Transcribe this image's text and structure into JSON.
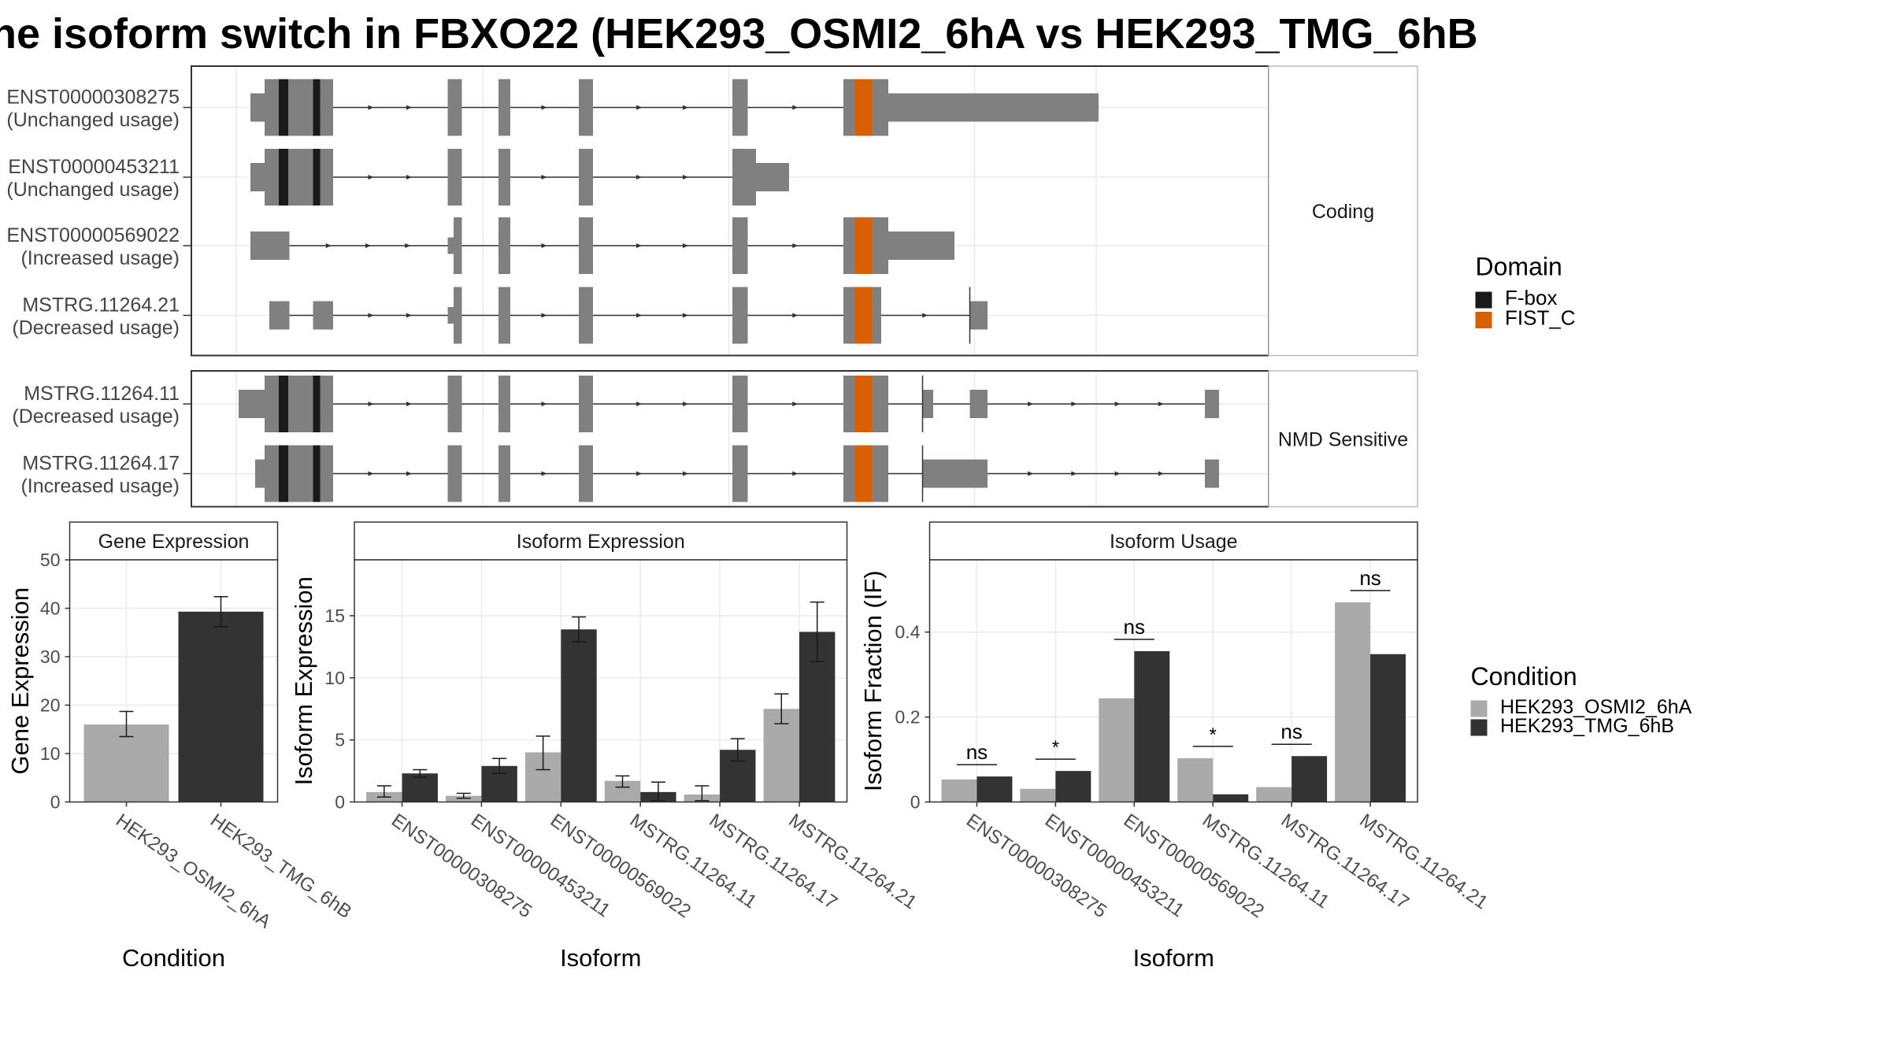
{
  "title": "he isoform switch in FBXO22 (HEK293_OSMI2_6hA vs HEK293_TMG_6hB",
  "structure": {
    "facets": [
      "Coding",
      "NMD Sensitive"
    ],
    "transcripts": [
      {
        "id": "ENST00000308275",
        "usage": "(Unchanged usage)",
        "facet": "Coding"
      },
      {
        "id": "ENST00000453211",
        "usage": "(Unchanged usage)",
        "facet": "Coding"
      },
      {
        "id": "ENST00000569022",
        "usage": "(Increased usage)",
        "facet": "Coding"
      },
      {
        "id": "MSTRG.11264.21",
        "usage": "(Decreased usage)",
        "facet": "Coding"
      },
      {
        "id": "MSTRG.11264.11",
        "usage": "(Decreased usage)",
        "facet": "NMD Sensitive"
      },
      {
        "id": "MSTRG.11264.17",
        "usage": "(Increased usage)",
        "facet": "NMD Sensitive"
      }
    ],
    "domain_legend": {
      "title": "Domain",
      "items": [
        {
          "label": "F-box",
          "color": "#1a1a1a"
        },
        {
          "label": "FIST_C",
          "color": "#d95f02"
        }
      ]
    },
    "exon_color": "#808080"
  },
  "condition_legend": {
    "title": "Condition",
    "items": [
      {
        "label": "HEK293_OSMI2_6hA",
        "color": "#aaaaaa"
      },
      {
        "label": "HEK293_TMG_6hB",
        "color": "#333333"
      }
    ]
  },
  "chart_data": [
    {
      "type": "bar",
      "title": "Gene Expression",
      "xlabel": "Condition",
      "ylabel": "Gene Expression",
      "ylim": [
        0,
        50
      ],
      "yticks": [
        0,
        10,
        20,
        30,
        40,
        50
      ],
      "categories": [
        "HEK293_OSMI2_6hA",
        "HEK293_TMG_6hB"
      ],
      "values": [
        16.0,
        39.3
      ],
      "errors": [
        [
          13.5,
          18.7
        ],
        [
          36.2,
          42.4
        ]
      ]
    },
    {
      "type": "bar",
      "title": "Isoform Expression",
      "xlabel": "Isoform",
      "ylabel": "Isoform Expression",
      "ylim": [
        0,
        19.5
      ],
      "yticks": [
        0,
        5,
        10,
        15
      ],
      "categories": [
        "ENST00000308275",
        "ENST00000453211",
        "ENST00000569022",
        "MSTRG.11264.11",
        "MSTRG.11264.17",
        "MSTRG.11264.21"
      ],
      "series": [
        {
          "name": "HEK293_OSMI2_6hA",
          "values": [
            0.8,
            0.5,
            4.0,
            1.7,
            0.6,
            7.5
          ],
          "errors": [
            [
              0.4,
              1.3
            ],
            [
              0.3,
              0.7
            ],
            [
              2.6,
              5.3
            ],
            [
              1.2,
              2.1
            ],
            [
              0.1,
              1.3
            ],
            [
              6.3,
              8.7
            ]
          ]
        },
        {
          "name": "HEK293_TMG_6hB",
          "values": [
            2.3,
            2.9,
            13.9,
            0.8,
            4.2,
            13.7
          ],
          "errors": [
            [
              2.0,
              2.6
            ],
            [
              2.3,
              3.5
            ],
            [
              12.9,
              14.9
            ],
            [
              0.1,
              1.6
            ],
            [
              3.3,
              5.1
            ],
            [
              11.3,
              16.1
            ]
          ]
        }
      ]
    },
    {
      "type": "bar",
      "title": "Isoform Usage",
      "xlabel": "Isoform",
      "ylabel": "Isoform Fraction (IF)",
      "ylim": [
        0,
        0.57
      ],
      "yticks": [
        0.0,
        0.2,
        0.4
      ],
      "categories": [
        "ENST00000308275",
        "ENST00000453211",
        "ENST00000569022",
        "MSTRG.11264.11",
        "MSTRG.11264.17",
        "MSTRG.11264.21"
      ],
      "series": [
        {
          "name": "HEK293_OSMI2_6hA",
          "values": [
            0.053,
            0.031,
            0.244,
            0.103,
            0.035,
            0.47
          ]
        },
        {
          "name": "HEK293_TMG_6hB",
          "values": [
            0.06,
            0.073,
            0.355,
            0.018,
            0.108,
            0.348
          ]
        }
      ],
      "significance": [
        "ns",
        "*",
        "ns",
        "*",
        "ns",
        "ns"
      ]
    }
  ]
}
